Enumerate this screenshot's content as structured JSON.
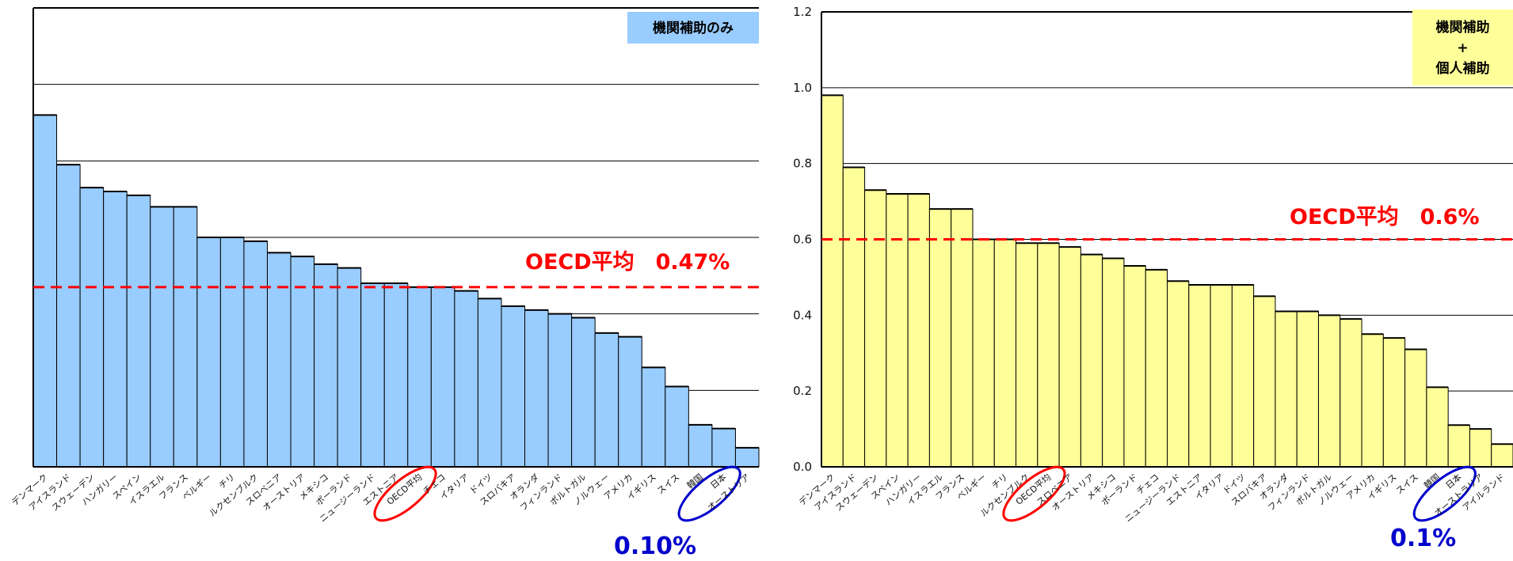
{
  "colors": {
    "left_bar": "#99CCFF",
    "right_bar": "#FFFF99",
    "average_line": "#FF0000",
    "highlight_oecd": "#FF0000",
    "highlight_japan": "#0000CC",
    "note_text": "#0000CC",
    "left_title_box": "#99CCFF",
    "right_title_box": "#FFFF99"
  },
  "chart_data": [
    {
      "type": "bar",
      "title_box": [
        "機関補助のみ"
      ],
      "ylim": [
        0,
        1.2
      ],
      "yticks": [
        0,
        0.2,
        0.4,
        0.6,
        0.8,
        1.0,
        1.2
      ],
      "show_y_tick_labels": false,
      "grid": true,
      "categories": [
        "デンマーク",
        "アイスランド",
        "スウェーデン",
        "ハンガリー",
        "スペイン",
        "イスラエル",
        "フランス",
        "ベルギー",
        "チリ",
        "ルクセンブルク",
        "スロベニア",
        "オーストリア",
        "メキシコ",
        "ポーランド",
        "ニュージーランド",
        "エストニア",
        "OECD平均",
        "チェコ",
        "イタリア",
        "ドイツ",
        "スロバキア",
        "オランダ",
        "フィンランド",
        "ポルトガル",
        "ノルウェー",
        "アメリカ",
        "イギリス",
        "スイス",
        "韓国",
        "日本",
        "オーストリア"
      ],
      "values": [
        0.92,
        0.79,
        0.73,
        0.72,
        0.71,
        0.68,
        0.68,
        0.6,
        0.6,
        0.59,
        0.56,
        0.55,
        0.53,
        0.52,
        0.48,
        0.48,
        0.47,
        0.47,
        0.46,
        0.44,
        0.42,
        0.41,
        0.4,
        0.39,
        0.35,
        0.34,
        0.26,
        0.21,
        0.11,
        0.1,
        0.05
      ],
      "average_value": 0.47,
      "average_label": "OECD平均　0.47%",
      "note_label": "0.10%",
      "highlight_oecd_label": "OECD平均",
      "highlight_japan_label": "日本"
    },
    {
      "type": "bar",
      "title_box": [
        "機関補助",
        "+",
        "個人補助"
      ],
      "ylim": [
        0,
        1.2
      ],
      "yticks": [
        0,
        0.2,
        0.4,
        0.6,
        0.8,
        1.0,
        1.2
      ],
      "ytick_labels": [
        "0.0",
        "0.2",
        "0.4",
        "0.6",
        "0.8",
        "1.0",
        "1.2"
      ],
      "show_y_tick_labels": true,
      "grid": true,
      "categories": [
        "デンマーク",
        "アイスランド",
        "スウェーデン",
        "スペイン",
        "ハンガリー",
        "イスラエル",
        "フランス",
        "ベルギー",
        "チリ",
        "ルクセンブルク",
        "OECD平均",
        "スロベニア",
        "オーストリア",
        "メキシコ",
        "ポーランド",
        "チェコ",
        "ニュージーランド",
        "エストニア",
        "イタリア",
        "ドイツ",
        "スロバキア",
        "オランダ",
        "フィンランド",
        "ポルトガル",
        "ノルウェー",
        "アメリカ",
        "イギリス",
        "スイス",
        "韓国",
        "日本",
        "オーストラリア",
        "アイルランド"
      ],
      "values": [
        0.98,
        0.79,
        0.73,
        0.72,
        0.72,
        0.68,
        0.68,
        0.6,
        0.6,
        0.59,
        0.59,
        0.58,
        0.56,
        0.55,
        0.53,
        0.52,
        0.49,
        0.48,
        0.48,
        0.48,
        0.45,
        0.41,
        0.41,
        0.4,
        0.39,
        0.35,
        0.34,
        0.31,
        0.21,
        0.11,
        0.1,
        0.06
      ],
      "average_value": 0.6,
      "average_label": "OECD平均　0.6%",
      "note_label": "0.1%",
      "highlight_oecd_label": "OECD平均",
      "highlight_japan_label": "日本"
    }
  ]
}
